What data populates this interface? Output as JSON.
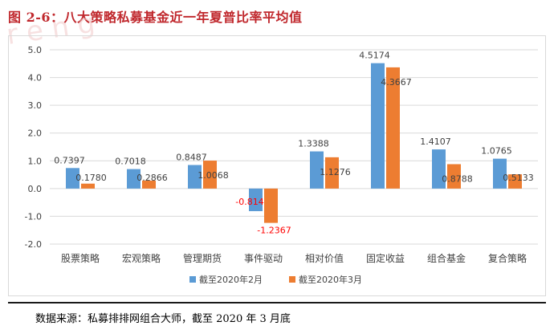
{
  "title": "图 2-6：八大策略私募基金近一年夏普比率平均值",
  "source": "数据来源：私募排排网组合大师，截至 2020 年 3 月底",
  "colors": {
    "series1": "#5b9bd5",
    "series2": "#ed7d31",
    "negativeLabel": "#ff0000",
    "title": "#c0282d"
  },
  "chart_data": {
    "type": "bar",
    "title": "",
    "xlabel": "",
    "ylabel": "",
    "ylim": [
      -2.0,
      5.0
    ],
    "yticks": [
      "5.0",
      "4.0",
      "3.0",
      "2.0",
      "1.0",
      "0.0",
      "-1.0",
      "-2.0"
    ],
    "grid": true,
    "legend": "bottom",
    "categories": [
      "股票策略",
      "宏观策略",
      "管理期货",
      "事件驱动",
      "相对价值",
      "固定收益",
      "组合基金",
      "复合策略"
    ],
    "series": [
      {
        "name": "截至2020年2月",
        "values": [
          0.7397,
          0.7018,
          0.8487,
          -0.814,
          1.3388,
          4.5174,
          1.4107,
          1.0765
        ],
        "labels": [
          "0.7397",
          "0.7018",
          "0.8487",
          "-0.8140",
          "1.3388",
          "4.5174",
          "1.4107",
          "1.0765"
        ]
      },
      {
        "name": "截至2020年3月",
        "values": [
          0.178,
          0.2866,
          1.0068,
          -1.2367,
          1.1276,
          4.3667,
          0.8788,
          0.5133
        ],
        "labels": [
          "0.1780",
          "0.2866",
          "1.0068",
          "-1.2367",
          "1.1276",
          "4.3667",
          "0.8788",
          "0.5133"
        ]
      }
    ]
  }
}
